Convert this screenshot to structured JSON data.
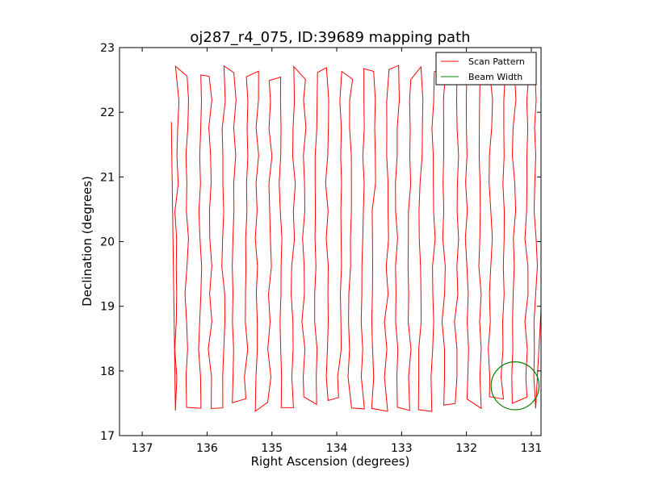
{
  "chart_data": {
    "type": "line",
    "title": "oj287_r4_075, ID:39689 mapping path",
    "xlabel": "Right Ascension (degrees)",
    "ylabel": "Declination (degrees)",
    "xlim": [
      137.35,
      130.85
    ],
    "ylim": [
      17,
      23
    ],
    "x_ticks": [
      137,
      136,
      135,
      134,
      133,
      132,
      131
    ],
    "y_ticks": [
      17,
      18,
      19,
      20,
      21,
      22,
      23
    ],
    "x_tick_labels": [
      "137",
      "136",
      "135",
      "134",
      "133",
      "132",
      "131"
    ],
    "y_tick_labels": [
      "17",
      "18",
      "19",
      "20",
      "21",
      "22",
      "23"
    ],
    "grid": false,
    "legend_position": "top-right",
    "series": [
      {
        "name": "Scan Pattern",
        "color": "#ff0000",
        "scan_columns_ra": [
          136.48,
          136.3,
          136.12,
          135.94,
          135.76,
          135.58,
          135.4,
          135.22,
          135.04,
          134.86,
          134.68,
          134.5,
          134.32,
          134.14,
          133.96,
          133.78,
          133.6,
          133.42,
          133.24,
          133.06,
          132.88,
          132.7,
          132.52,
          132.34,
          132.16,
          131.98,
          131.8,
          131.62,
          131.44,
          131.26,
          131.08,
          130.92
        ],
        "dec_range": [
          17.3,
          22.87
        ]
      },
      {
        "name": "Beam Width",
        "color": "#008000",
        "center": [
          131.25,
          17.77
        ],
        "radius": 0.37
      }
    ]
  }
}
